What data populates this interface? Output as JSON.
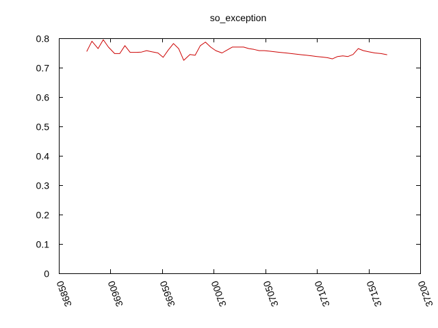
{
  "chart_data": {
    "type": "line",
    "title": "so_exception",
    "xlabel": "",
    "ylabel": "",
    "xlim": [
      36850,
      37200
    ],
    "ylim": [
      0,
      0.8
    ],
    "x_ticks": [
      36850,
      36900,
      36950,
      37000,
      37050,
      37100,
      37150,
      37200
    ],
    "y_ticks": [
      0,
      0.1,
      0.2,
      0.3,
      0.4,
      0.5,
      0.6,
      0.7,
      0.8
    ],
    "grid": false,
    "legend": "none",
    "series": [
      {
        "color": "#cc0000",
        "x": [
          36877,
          36882,
          36888,
          36893,
          36898,
          36904,
          36909,
          36914,
          36919,
          36925,
          36930,
          36935,
          36940,
          36946,
          36951,
          36956,
          36961,
          36966,
          36971,
          36977,
          36982,
          36987,
          36992,
          36997,
          37002,
          37008,
          37013,
          37018,
          37024,
          37029,
          37034,
          37039,
          37044,
          37049,
          37054,
          37059,
          37064,
          37070,
          37075,
          37080,
          37085,
          37090,
          37095,
          37100,
          37105,
          37110,
          37115,
          37120,
          37125,
          37130,
          37135,
          37140,
          37145,
          37150,
          37156,
          37162,
          37168
        ],
        "y": [
          0.755,
          0.79,
          0.765,
          0.795,
          0.77,
          0.748,
          0.748,
          0.775,
          0.752,
          0.752,
          0.753,
          0.758,
          0.754,
          0.75,
          0.735,
          0.76,
          0.782,
          0.765,
          0.725,
          0.745,
          0.742,
          0.775,
          0.787,
          0.77,
          0.758,
          0.75,
          0.76,
          0.77,
          0.77,
          0.77,
          0.765,
          0.762,
          0.758,
          0.758,
          0.756,
          0.754,
          0.752,
          0.75,
          0.748,
          0.746,
          0.744,
          0.742,
          0.74,
          0.738,
          0.736,
          0.734,
          0.73,
          0.738,
          0.74,
          0.738,
          0.745,
          0.765,
          0.758,
          0.754,
          0.75,
          0.748,
          0.744
        ]
      }
    ]
  }
}
